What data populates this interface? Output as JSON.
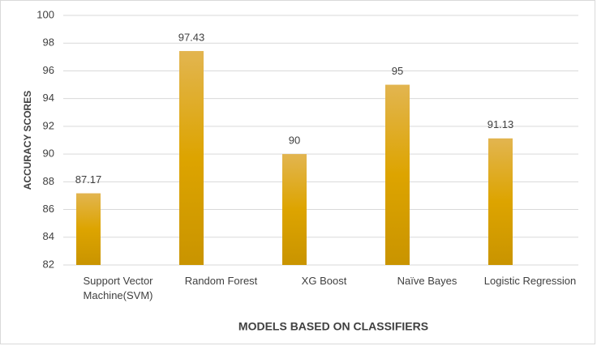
{
  "chart_data": {
    "type": "bar",
    "title": null,
    "x_label": "MODELS BASED ON CLASSIFIERS",
    "y_label": "ACCURACY SCORES",
    "categories": [
      "Support Vector Machine(SVM)",
      "Random Forest",
      "XG Boost",
      "Naïve Bayes",
      "Logistic Regression"
    ],
    "values": [
      87.17,
      97.43,
      90,
      95,
      91.13
    ],
    "color": "#dda400",
    "ylim": [
      82,
      100
    ],
    "yticks": [
      82,
      84,
      86,
      88,
      90,
      92,
      94,
      96,
      98,
      100
    ],
    "grid": true
  }
}
